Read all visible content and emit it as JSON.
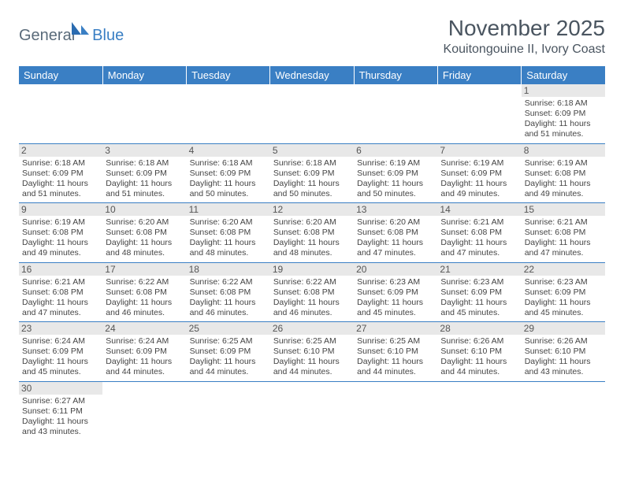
{
  "logo": {
    "text1": "General",
    "text2": "Blue"
  },
  "title": "November 2025",
  "location": "Kouitongouine II, Ivory Coast",
  "colors": {
    "header_bg": "#3a7fc4",
    "header_text": "#ffffff",
    "daynum_bg": "#e8e8e8",
    "border": "#3a7fc4",
    "text": "#444444"
  },
  "weekdays": [
    "Sunday",
    "Monday",
    "Tuesday",
    "Wednesday",
    "Thursday",
    "Friday",
    "Saturday"
  ],
  "weeks": [
    [
      null,
      null,
      null,
      null,
      null,
      null,
      {
        "d": "1",
        "sr": "6:18 AM",
        "ss": "6:09 PM",
        "dl": "11 hours and 51 minutes."
      }
    ],
    [
      {
        "d": "2",
        "sr": "6:18 AM",
        "ss": "6:09 PM",
        "dl": "11 hours and 51 minutes."
      },
      {
        "d": "3",
        "sr": "6:18 AM",
        "ss": "6:09 PM",
        "dl": "11 hours and 51 minutes."
      },
      {
        "d": "4",
        "sr": "6:18 AM",
        "ss": "6:09 PM",
        "dl": "11 hours and 50 minutes."
      },
      {
        "d": "5",
        "sr": "6:18 AM",
        "ss": "6:09 PM",
        "dl": "11 hours and 50 minutes."
      },
      {
        "d": "6",
        "sr": "6:19 AM",
        "ss": "6:09 PM",
        "dl": "11 hours and 50 minutes."
      },
      {
        "d": "7",
        "sr": "6:19 AM",
        "ss": "6:09 PM",
        "dl": "11 hours and 49 minutes."
      },
      {
        "d": "8",
        "sr": "6:19 AM",
        "ss": "6:08 PM",
        "dl": "11 hours and 49 minutes."
      }
    ],
    [
      {
        "d": "9",
        "sr": "6:19 AM",
        "ss": "6:08 PM",
        "dl": "11 hours and 49 minutes."
      },
      {
        "d": "10",
        "sr": "6:20 AM",
        "ss": "6:08 PM",
        "dl": "11 hours and 48 minutes."
      },
      {
        "d": "11",
        "sr": "6:20 AM",
        "ss": "6:08 PM",
        "dl": "11 hours and 48 minutes."
      },
      {
        "d": "12",
        "sr": "6:20 AM",
        "ss": "6:08 PM",
        "dl": "11 hours and 48 minutes."
      },
      {
        "d": "13",
        "sr": "6:20 AM",
        "ss": "6:08 PM",
        "dl": "11 hours and 47 minutes."
      },
      {
        "d": "14",
        "sr": "6:21 AM",
        "ss": "6:08 PM",
        "dl": "11 hours and 47 minutes."
      },
      {
        "d": "15",
        "sr": "6:21 AM",
        "ss": "6:08 PM",
        "dl": "11 hours and 47 minutes."
      }
    ],
    [
      {
        "d": "16",
        "sr": "6:21 AM",
        "ss": "6:08 PM",
        "dl": "11 hours and 47 minutes."
      },
      {
        "d": "17",
        "sr": "6:22 AM",
        "ss": "6:08 PM",
        "dl": "11 hours and 46 minutes."
      },
      {
        "d": "18",
        "sr": "6:22 AM",
        "ss": "6:08 PM",
        "dl": "11 hours and 46 minutes."
      },
      {
        "d": "19",
        "sr": "6:22 AM",
        "ss": "6:08 PM",
        "dl": "11 hours and 46 minutes."
      },
      {
        "d": "20",
        "sr": "6:23 AM",
        "ss": "6:09 PM",
        "dl": "11 hours and 45 minutes."
      },
      {
        "d": "21",
        "sr": "6:23 AM",
        "ss": "6:09 PM",
        "dl": "11 hours and 45 minutes."
      },
      {
        "d": "22",
        "sr": "6:23 AM",
        "ss": "6:09 PM",
        "dl": "11 hours and 45 minutes."
      }
    ],
    [
      {
        "d": "23",
        "sr": "6:24 AM",
        "ss": "6:09 PM",
        "dl": "11 hours and 45 minutes."
      },
      {
        "d": "24",
        "sr": "6:24 AM",
        "ss": "6:09 PM",
        "dl": "11 hours and 44 minutes."
      },
      {
        "d": "25",
        "sr": "6:25 AM",
        "ss": "6:09 PM",
        "dl": "11 hours and 44 minutes."
      },
      {
        "d": "26",
        "sr": "6:25 AM",
        "ss": "6:10 PM",
        "dl": "11 hours and 44 minutes."
      },
      {
        "d": "27",
        "sr": "6:25 AM",
        "ss": "6:10 PM",
        "dl": "11 hours and 44 minutes."
      },
      {
        "d": "28",
        "sr": "6:26 AM",
        "ss": "6:10 PM",
        "dl": "11 hours and 44 minutes."
      },
      {
        "d": "29",
        "sr": "6:26 AM",
        "ss": "6:10 PM",
        "dl": "11 hours and 43 minutes."
      }
    ],
    [
      {
        "d": "30",
        "sr": "6:27 AM",
        "ss": "6:11 PM",
        "dl": "11 hours and 43 minutes."
      },
      null,
      null,
      null,
      null,
      null,
      null
    ]
  ],
  "labels": {
    "sunrise": "Sunrise:",
    "sunset": "Sunset:",
    "daylight": "Daylight:"
  }
}
